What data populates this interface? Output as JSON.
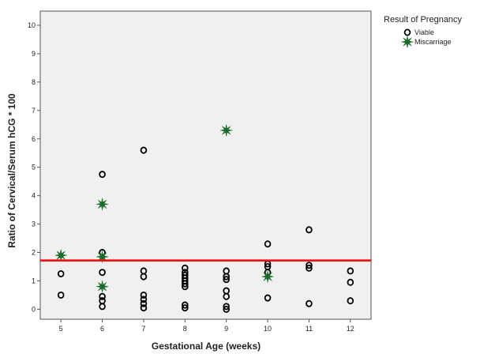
{
  "chart_data": {
    "type": "scatter",
    "title": "",
    "xlabel": "Gestational Age (weeks)",
    "ylabel": "Ratio of Cervical/Serum hCG * 100",
    "xlim": [
      4.5,
      12.5
    ],
    "ylim": [
      -0.35,
      10.5
    ],
    "x_ticks": [
      5,
      6,
      7,
      8,
      9,
      10,
      11,
      12
    ],
    "y_ticks": [
      0,
      1,
      2,
      3,
      4,
      5,
      6,
      7,
      8,
      9,
      10
    ],
    "grid": false,
    "plot_background": "#f0f0f0",
    "reference_line": {
      "y": 1.72,
      "color": "#ff0000"
    },
    "legend": {
      "title": "Result of Pregnancy",
      "position": "right"
    },
    "series": [
      {
        "name": "Viable",
        "marker": "circle",
        "color": "#000000",
        "points": [
          [
            5,
            1.25
          ],
          [
            5,
            0.5
          ],
          [
            6,
            4.75
          ],
          [
            6,
            2.0
          ],
          [
            6,
            1.3
          ],
          [
            6,
            0.45
          ],
          [
            6,
            0.3
          ],
          [
            6,
            0.1
          ],
          [
            7,
            5.6
          ],
          [
            7,
            1.35
          ],
          [
            7,
            1.15
          ],
          [
            7,
            0.5
          ],
          [
            7,
            0.35
          ],
          [
            7,
            0.2
          ],
          [
            7,
            0.05
          ],
          [
            8,
            1.45
          ],
          [
            8,
            1.3
          ],
          [
            8,
            1.2
          ],
          [
            8,
            1.1
          ],
          [
            8,
            1.0
          ],
          [
            8,
            0.9
          ],
          [
            8,
            0.8
          ],
          [
            8,
            0.15
          ],
          [
            8,
            0.05
          ],
          [
            9,
            1.35
          ],
          [
            9,
            1.15
          ],
          [
            9,
            1.05
          ],
          [
            9,
            0.65
          ],
          [
            9,
            0.45
          ],
          [
            9,
            0.1
          ],
          [
            9,
            0.0
          ],
          [
            10,
            2.3
          ],
          [
            10,
            1.6
          ],
          [
            10,
            1.5
          ],
          [
            10,
            1.3
          ],
          [
            10,
            0.4
          ],
          [
            11,
            2.8
          ],
          [
            11,
            1.55
          ],
          [
            11,
            1.45
          ],
          [
            11,
            0.2
          ],
          [
            12,
            1.35
          ],
          [
            12,
            0.95
          ],
          [
            12,
            0.3
          ]
        ]
      },
      {
        "name": "Miscarriage",
        "marker": "star",
        "color": "#1a6b2a",
        "points": [
          [
            5,
            1.9
          ],
          [
            6,
            3.7
          ],
          [
            6,
            1.85
          ],
          [
            6,
            0.8
          ],
          [
            9,
            6.3
          ],
          [
            10,
            1.15
          ]
        ]
      }
    ]
  }
}
